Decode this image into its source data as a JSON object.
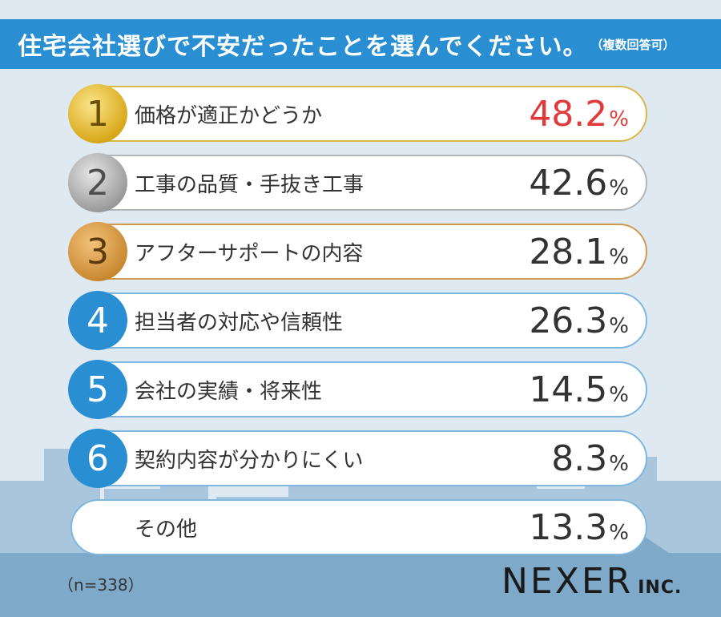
{
  "title": "住宅会社選びで不安だったことを選んでください。",
  "title_note": "（複数回答可）",
  "chart_data": {
    "type": "table",
    "title": "住宅会社選びで不安だったことを選んでください。",
    "subtitle": "（複数回答可）",
    "rows": [
      {
        "rank": "1",
        "label": "価格が適正かどうか",
        "value": 48.2,
        "display": "48.2",
        "style": "gold"
      },
      {
        "rank": "2",
        "label": "工事の品質・手抜き工事",
        "value": 42.6,
        "display": "42.6",
        "style": "silver"
      },
      {
        "rank": "3",
        "label": "アフターサポートの内容",
        "value": 28.1,
        "display": "28.1",
        "style": "bronze"
      },
      {
        "rank": "4",
        "label": "担当者の対応や信頼性",
        "value": 26.3,
        "display": "26.3",
        "style": "blue"
      },
      {
        "rank": "5",
        "label": "会社の実績・将来性",
        "value": 14.5,
        "display": "14.5",
        "style": "blue"
      },
      {
        "rank": "6",
        "label": "契約内容が分かりにくい",
        "value": 8.3,
        "display": "8.3",
        "style": "blue"
      },
      {
        "rank": "",
        "label": "その他",
        "value": 13.3,
        "display": "13.3",
        "style": "none"
      }
    ],
    "unit": "%",
    "highlight_color": "#e03a3a"
  },
  "sample_size": "（n=338）",
  "logo": {
    "main": "NEXER",
    "suffix": "INC."
  },
  "colors": {
    "accent": "#2a8fd2",
    "top_value": "#e03a3a"
  }
}
